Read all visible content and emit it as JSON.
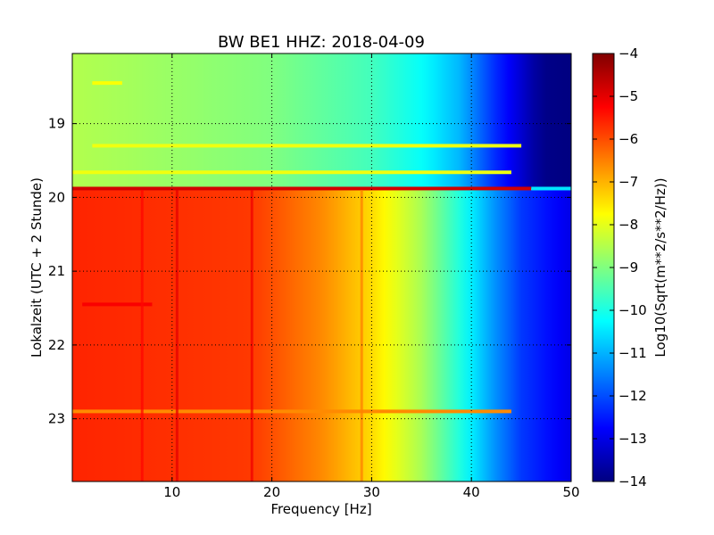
{
  "chart_data": {
    "type": "heatmap",
    "title": "BW BE1 HHZ: 2018-04-09",
    "xlabel": "Frequency [Hz]",
    "ylabel": "Lokalzeit (UTC + 2 Stunde)",
    "xlim": [
      0,
      50
    ],
    "ylim": [
      18.05,
      23.85
    ],
    "x_ticks": [
      10,
      20,
      30,
      40,
      50
    ],
    "y_ticks": [
      19,
      20,
      21,
      22,
      23
    ],
    "grid": true,
    "grid_style": "dotted",
    "colormap": "jet",
    "colorbar": {
      "label": "Log10(Sqrt(m**2/s**2/Hz))",
      "range": [
        -14,
        -4
      ],
      "ticks": [
        -4,
        -5,
        -6,
        -7,
        -8,
        -9,
        -10,
        -11,
        -12,
        -13,
        -14
      ]
    },
    "regimes": [
      {
        "time_range": [
          18.05,
          19.88
        ],
        "level_by_frequency": [
          {
            "x": 0,
            "value": -8.5
          },
          {
            "x": 20,
            "value": -9.0
          },
          {
            "x": 30,
            "value": -9.6
          },
          {
            "x": 35,
            "value": -10.2
          },
          {
            "x": 39,
            "value": -11.0
          },
          {
            "x": 42,
            "value": -12.2
          },
          {
            "x": 45,
            "value": -13.2
          },
          {
            "x": 47,
            "value": -13.9
          },
          {
            "x": 50,
            "value": -14.0
          }
        ]
      },
      {
        "time_range": [
          19.9,
          23.85
        ],
        "level_by_frequency": [
          {
            "x": 0,
            "value": -5.6
          },
          {
            "x": 18,
            "value": -5.8
          },
          {
            "x": 25,
            "value": -6.6
          },
          {
            "x": 30,
            "value": -7.4
          },
          {
            "x": 35,
            "value": -8.6
          },
          {
            "x": 39,
            "value": -10.0
          },
          {
            "x": 42,
            "value": -11.2
          },
          {
            "x": 45,
            "value": -12.2
          },
          {
            "x": 50,
            "value": -13.0
          }
        ]
      }
    ],
    "features": [
      {
        "kind": "horizontal_band",
        "time": 19.88,
        "value": -4.8,
        "x_range": [
          0,
          46
        ]
      },
      {
        "kind": "horizontal_band",
        "time": 19.88,
        "value": -10.5,
        "x_range": [
          46,
          50
        ]
      },
      {
        "kind": "horizontal_band",
        "time": 19.3,
        "value": -7.9,
        "x_range": [
          2,
          45
        ]
      },
      {
        "kind": "horizontal_band",
        "time": 19.66,
        "value": -7.9,
        "x_range": [
          0,
          44
        ]
      },
      {
        "kind": "horizontal_band",
        "time": 18.45,
        "value": -7.8,
        "x_range": [
          2,
          5
        ]
      },
      {
        "kind": "horizontal_band",
        "time": 21.45,
        "value": -5.2,
        "x_range": [
          1,
          8
        ]
      },
      {
        "kind": "horizontal_band",
        "time": 22.9,
        "value": -6.6,
        "x_range": [
          0,
          44
        ]
      },
      {
        "kind": "vertical_band",
        "x": 10.5,
        "value": -5.0,
        "time_range": [
          19.9,
          23.85
        ]
      },
      {
        "kind": "vertical_band",
        "x": 18.0,
        "value": -5.1,
        "time_range": [
          19.9,
          23.85
        ]
      },
      {
        "kind": "vertical_band",
        "x": 7.0,
        "value": -5.3,
        "time_range": [
          19.9,
          23.85
        ]
      },
      {
        "kind": "vertical_band",
        "x": 29.0,
        "value": -6.5,
        "time_range": [
          19.9,
          23.85
        ]
      }
    ]
  }
}
